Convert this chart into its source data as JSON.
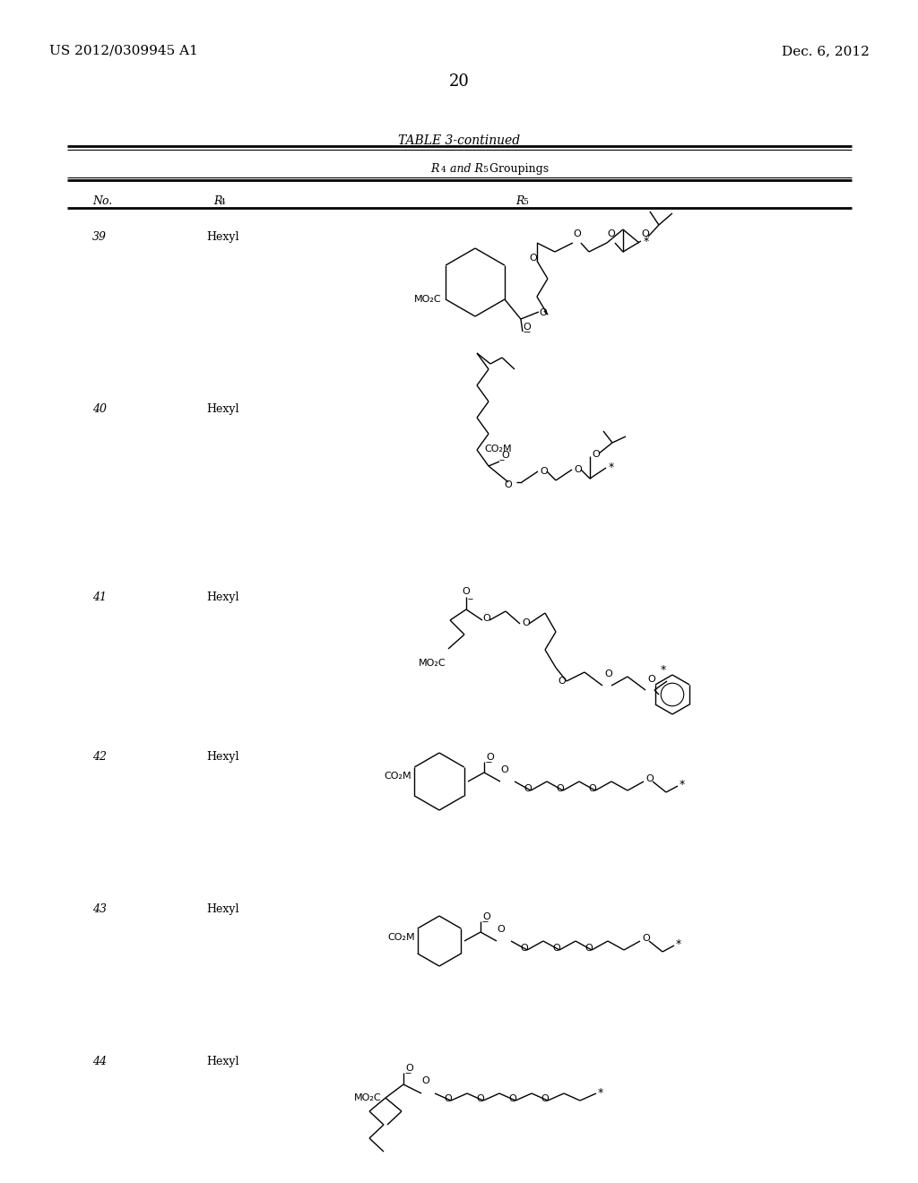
{
  "bg_color": "#ffffff",
  "header_left": "US 2012/0309945 A1",
  "header_right": "Dec. 6, 2012",
  "page_number": "20",
  "table_title": "TABLE 3-continued",
  "col_no": "No.",
  "col_r4": "R",
  "col_r5": "R",
  "rows_no": [
    "39",
    "40",
    "41",
    "42",
    "43",
    "44"
  ],
  "rows_r4": [
    "Hexyl",
    "Hexyl",
    "Hexyl",
    "Hexyl",
    "Hexyl",
    "Hexyl"
  ]
}
